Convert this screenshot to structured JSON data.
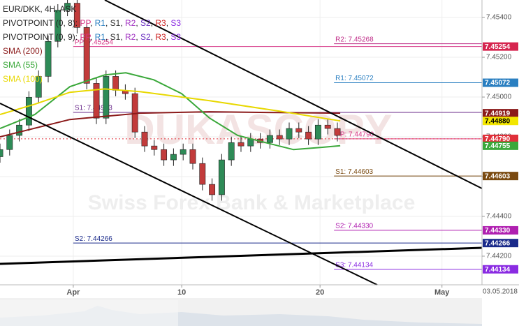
{
  "header": {
    "symbol": "EUR/DKK, 4H, ASK",
    "date": "03.05.2018"
  },
  "legend": [
    {
      "label": "PIVOTPOINT (0, 8):",
      "items": [
        {
          "text": "PP",
          "color": "#d63384"
        },
        {
          "text": "R1",
          "color": "#2a7fc1"
        },
        {
          "text": "S1",
          "color": "#333333"
        },
        {
          "text": "R2",
          "color": "#a02fc1"
        },
        {
          "text": "S2",
          "color": "#6a2fc1"
        },
        {
          "text": "R3",
          "color": "#cc2020"
        },
        {
          "text": "S3",
          "color": "#8a2be2"
        }
      ]
    },
    {
      "label": "PIVOTPOINT (0, 9):",
      "items": [
        {
          "text": "PP",
          "color": "#d63384"
        },
        {
          "text": "R1",
          "color": "#2a7fc1"
        },
        {
          "text": "S1",
          "color": "#333333"
        },
        {
          "text": "R2",
          "color": "#a02fc1"
        },
        {
          "text": "S2",
          "color": "#6a2fc1"
        },
        {
          "text": "R3",
          "color": "#cc2020"
        },
        {
          "text": "S3",
          "color": "#8a2be2"
        }
      ]
    }
  ],
  "watermark": {
    "logo": "DUKASCOPY",
    "tagline": "Swiss Forex Bank & Marketplace"
  },
  "chart_data": {
    "type": "candlestick",
    "up_color": "#2e8b57",
    "down_color": "#c23b3b",
    "xlim": [
      0,
      100
    ],
    "ylim": [
      7.44056,
      7.45488
    ],
    "yticks": [
      {
        "value": 7.454,
        "label": "7.45400"
      },
      {
        "value": 7.452,
        "label": "7.45200"
      },
      {
        "value": 7.45,
        "label": "7.45000"
      },
      {
        "value": 7.448,
        "label": "7.44800"
      },
      {
        "value": 7.446,
        "label": "7.44600"
      },
      {
        "value": 7.444,
        "label": "7.44400"
      },
      {
        "value": 7.442,
        "label": "7.44200"
      }
    ],
    "xticks": [
      {
        "value": 15.2,
        "label": "Apr"
      },
      {
        "value": 37.7,
        "label": "10"
      },
      {
        "value": 66.4,
        "label": "20"
      },
      {
        "value": 91.7,
        "label": "May"
      }
    ],
    "grid": true,
    "x": [
      0,
      2,
      4,
      6,
      8,
      10,
      12,
      14,
      16,
      18,
      20,
      22,
      24,
      26,
      28,
      30,
      32,
      34,
      36,
      38,
      40,
      42,
      44,
      46,
      48,
      50,
      52,
      54,
      56,
      58,
      60,
      62,
      64,
      66,
      68,
      70
    ],
    "open": [
      7.447,
      7.44736,
      7.44807,
      7.44859,
      7.44999,
      7.45104,
      7.4528,
      7.45437,
      7.45472,
      7.4535,
      7.45069,
      7.44894,
      7.45104,
      7.45034,
      7.45017,
      7.44824,
      7.44754,
      7.44736,
      7.44684,
      7.44712,
      7.44736,
      7.44666,
      7.44561,
      7.44509,
      7.44684,
      7.44771,
      7.44754,
      7.44789,
      7.44771,
      7.44807,
      7.44789,
      7.44842,
      7.44824,
      7.44789,
      7.44859,
      7.44842
    ],
    "high": [
      7.44766,
      7.44837,
      7.44889,
      7.45029,
      7.45134,
      7.4531,
      7.45467,
      7.45502,
      7.45502,
      7.4538,
      7.45099,
      7.45134,
      7.45134,
      7.45064,
      7.45047,
      7.44854,
      7.44784,
      7.44766,
      7.44742,
      7.44766,
      7.44766,
      7.44696,
      7.44591,
      7.44714,
      7.44801,
      7.44801,
      7.44819,
      7.44819,
      7.44837,
      7.44837,
      7.44872,
      7.44872,
      7.44854,
      7.44889,
      7.44889,
      7.44872
    ],
    "low": [
      7.4467,
      7.44706,
      7.44777,
      7.44829,
      7.44969,
      7.45074,
      7.4525,
      7.45407,
      7.4532,
      7.45039,
      7.44864,
      7.44864,
      7.45004,
      7.44987,
      7.44794,
      7.44724,
      7.44706,
      7.44654,
      7.44654,
      7.44682,
      7.44636,
      7.44531,
      7.44479,
      7.44479,
      7.44654,
      7.44724,
      7.44724,
      7.44741,
      7.44741,
      7.44759,
      7.44759,
      7.44794,
      7.44759,
      7.44759,
      7.44812,
      7.44777
    ],
    "close": [
      7.44736,
      7.44807,
      7.44859,
      7.44999,
      7.45104,
      7.4528,
      7.45437,
      7.45472,
      7.4535,
      7.45069,
      7.44894,
      7.45104,
      7.45034,
      7.45017,
      7.44824,
      7.44754,
      7.44736,
      7.44684,
      7.44712,
      7.44736,
      7.44666,
      7.44561,
      7.44509,
      7.44684,
      7.44771,
      7.44754,
      7.44789,
      7.44771,
      7.44807,
      7.44789,
      7.44842,
      7.44824,
      7.44789,
      7.44859,
      7.44842,
      7.44807
    ],
    "series": [
      {
        "name": "SMA (200)",
        "color": "#8b1a1a",
        "x": [
          0,
          14.5,
          29,
          43.5,
          58,
          70.6
        ],
        "values": [
          7.448,
          7.44887,
          7.44919,
          7.44926,
          7.44922,
          7.44919
        ]
      },
      {
        "name": "SMA (55)",
        "color": "#3aa83a",
        "x": [
          0,
          7.2,
          14.5,
          21.7,
          26.1,
          31.9,
          37.7,
          43.5,
          49.3,
          55.1,
          60.9,
          66.7,
          70.6
        ],
        "values": [
          7.44842,
          7.44912,
          7.45052,
          7.45111,
          7.45122,
          7.45087,
          7.45017,
          7.44894,
          7.44807,
          7.44771,
          7.44736,
          7.44747,
          7.44755
        ]
      },
      {
        "name": "SMA (100)",
        "color": "#e8d800",
        "x": [
          0,
          7.2,
          14.5,
          21.7,
          29,
          43.5,
          58,
          70.6
        ],
        "values": [
          7.44912,
          7.44964,
          7.45024,
          7.45041,
          7.45027,
          7.44982,
          7.44929,
          7.4488
        ]
      }
    ],
    "levels": [
      {
        "label": "PP: 7.45254",
        "value": 7.45254,
        "start": 15.2,
        "color": "#d63384"
      },
      {
        "label": "S1: 7.44923",
        "value": 7.44923,
        "start": 15.2,
        "color": "#6a2a8a"
      },
      {
        "label": "S2: 7.44266",
        "value": 7.44266,
        "start": 15.2,
        "color": "#1a2a8a"
      },
      {
        "label": "R2: 7.45268",
        "value": 7.45268,
        "start": 69.3,
        "color": "#c0308a"
      },
      {
        "label": "R1: 7.45072",
        "value": 7.45072,
        "start": 69.3,
        "color": "#2a7fc1"
      },
      {
        "label": "PP: 7.44790",
        "value": 7.4479,
        "start": 69.3,
        "color": "#d63384"
      },
      {
        "label": "S1: 7.44603",
        "value": 7.44603,
        "start": 69.3,
        "color": "#7a4a10"
      },
      {
        "label": "S2: 7.44330",
        "value": 7.4433,
        "start": 69.3,
        "color": "#b020b0"
      },
      {
        "label": "S3: 7.44134",
        "value": 7.44134,
        "start": 69.3,
        "color": "#8a2be2"
      }
    ],
    "current_price": 7.4479,
    "price_markers": [
      {
        "value": 7.45254,
        "label": "7.45254",
        "color": "#d6254f",
        "text_color": "#ffffff"
      },
      {
        "value": 7.45072,
        "label": "7.45072",
        "color": "#2a7fc1",
        "text_color": "#ffffff"
      },
      {
        "value": 7.44919,
        "label": "7.44919",
        "color": "#8b1a1a",
        "text_color": "#ffffff"
      },
      {
        "value": 7.4488,
        "label": "7.44880",
        "color": "#f2e600",
        "text_color": "#000000"
      },
      {
        "value": 7.4479,
        "label": "7.44790",
        "color": "#e0303a",
        "text_color": "#ffffff"
      },
      {
        "value": 7.44755,
        "label": "7.44755",
        "color": "#3aa83a",
        "text_color": "#ffffff"
      },
      {
        "value": 7.44603,
        "label": "7.44603",
        "color": "#7a4a10",
        "text_color": "#ffffff"
      },
      {
        "value": 7.4433,
        "label": "7.44330",
        "color": "#b020b0",
        "text_color": "#ffffff"
      },
      {
        "value": 7.44266,
        "label": "7.44266",
        "color": "#1a2a8a",
        "text_color": "#ffffff"
      },
      {
        "value": 7.44134,
        "label": "7.44134",
        "color": "#8a2be2",
        "text_color": "#ffffff"
      }
    ]
  }
}
